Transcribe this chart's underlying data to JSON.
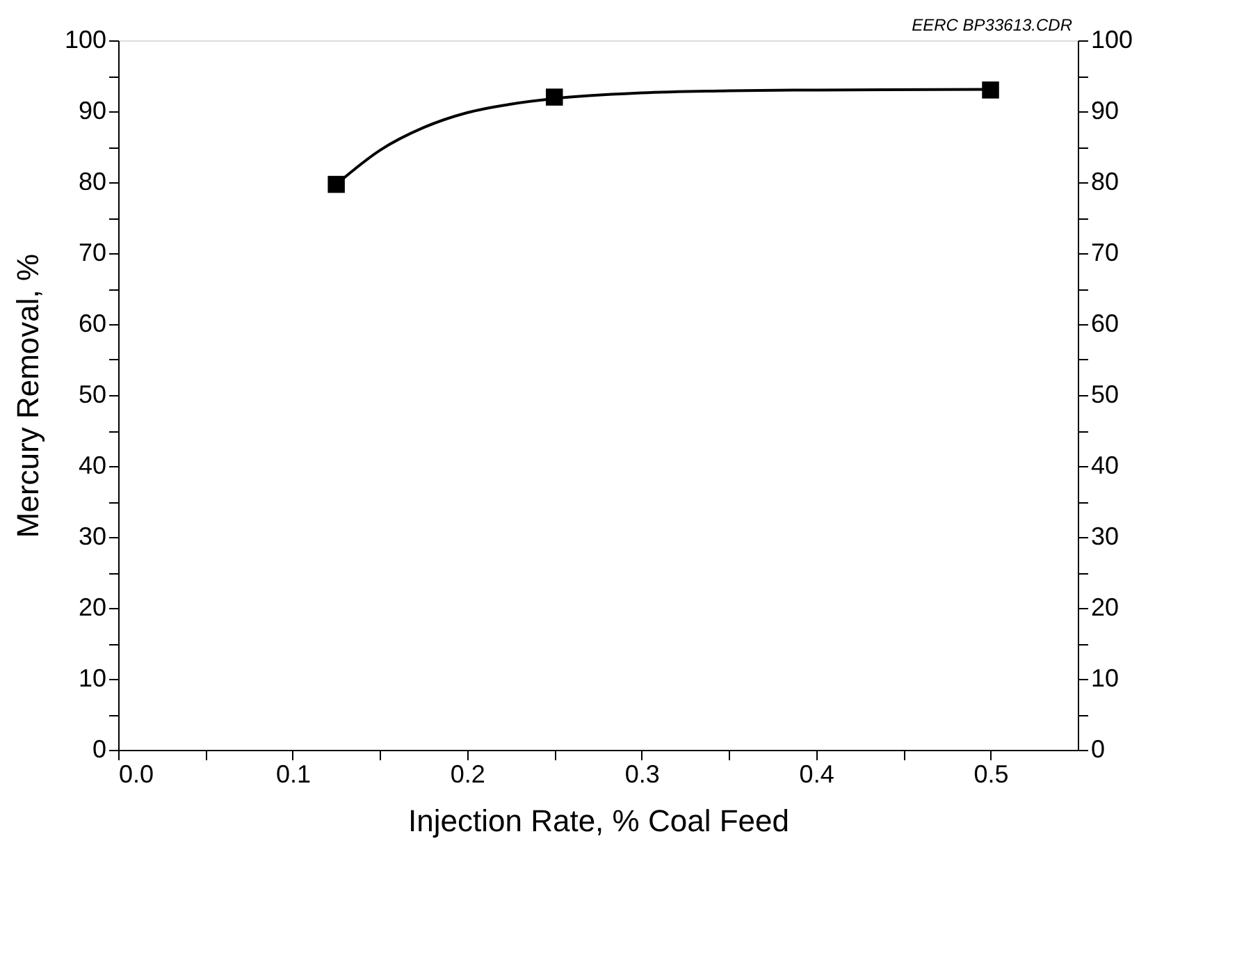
{
  "chart_data": {
    "type": "scatter",
    "xlabel": "Injection Rate, % Coal Feed",
    "ylabel": "Mercury Removal, %",
    "annotations": [
      "EERC BP33613.CDR"
    ],
    "xlim": [
      0,
      0.55
    ],
    "xticks": [
      {
        "value": 0,
        "label": "0.0"
      },
      {
        "value": 0.05,
        "label": null
      },
      0.1,
      {
        "value": 0.15,
        "label": null
      },
      0.2,
      {
        "value": 0.25,
        "label": null
      },
      0.3,
      {
        "value": 0.35,
        "label": null
      },
      0.4,
      {
        "value": 0.45,
        "label": null
      },
      0.5
    ],
    "ylim": [
      0,
      100
    ],
    "yticks": [
      0,
      {
        "value": 5,
        "label": null
      },
      10,
      {
        "value": 15,
        "label": null
      },
      20,
      {
        "value": 25,
        "label": null
      },
      30,
      {
        "value": 35,
        "label": null
      },
      40,
      {
        "value": 45,
        "label": null
      },
      50,
      {
        "value": 55,
        "label": null
      },
      60,
      {
        "value": 65,
        "label": null
      },
      70,
      {
        "value": 75,
        "label": null
      },
      80,
      {
        "value": 85,
        "label": null
      },
      90,
      {
        "value": 95,
        "label": null
      },
      100
    ],
    "y2lim": [
      0,
      100
    ],
    "y2ticks": [
      0,
      {
        "value": 5,
        "label": null
      },
      10,
      {
        "value": 15,
        "label": null
      },
      20,
      {
        "value": 25,
        "label": null
      },
      30,
      {
        "value": 35,
        "label": null
      },
      40,
      {
        "value": 45,
        "label": null
      },
      50,
      {
        "value": 55,
        "label": null
      },
      60,
      {
        "value": 65,
        "label": null
      },
      70,
      {
        "value": 75,
        "label": null
      },
      80,
      {
        "value": 85,
        "label": null
      },
      90,
      {
        "value": 95,
        "label": null
      },
      100
    ],
    "grid": false,
    "series": [
      {
        "type": "line",
        "color": "#000000",
        "marker": "none",
        "line_style": "solid",
        "x": [
          0.125,
          0.15,
          0.175,
          0.2,
          0.225,
          0.25,
          0.3,
          0.35,
          0.4,
          0.5
        ],
        "values": [
          79.7,
          84.5,
          87.7,
          89.8,
          91.0,
          91.8,
          92.6,
          92.9,
          93.0,
          93.1
        ]
      },
      {
        "color": "#000000",
        "marker": "square",
        "x": [
          0.125,
          0.25,
          0.5
        ],
        "values": [
          79.7,
          92.0,
          93.0
        ]
      }
    ]
  }
}
